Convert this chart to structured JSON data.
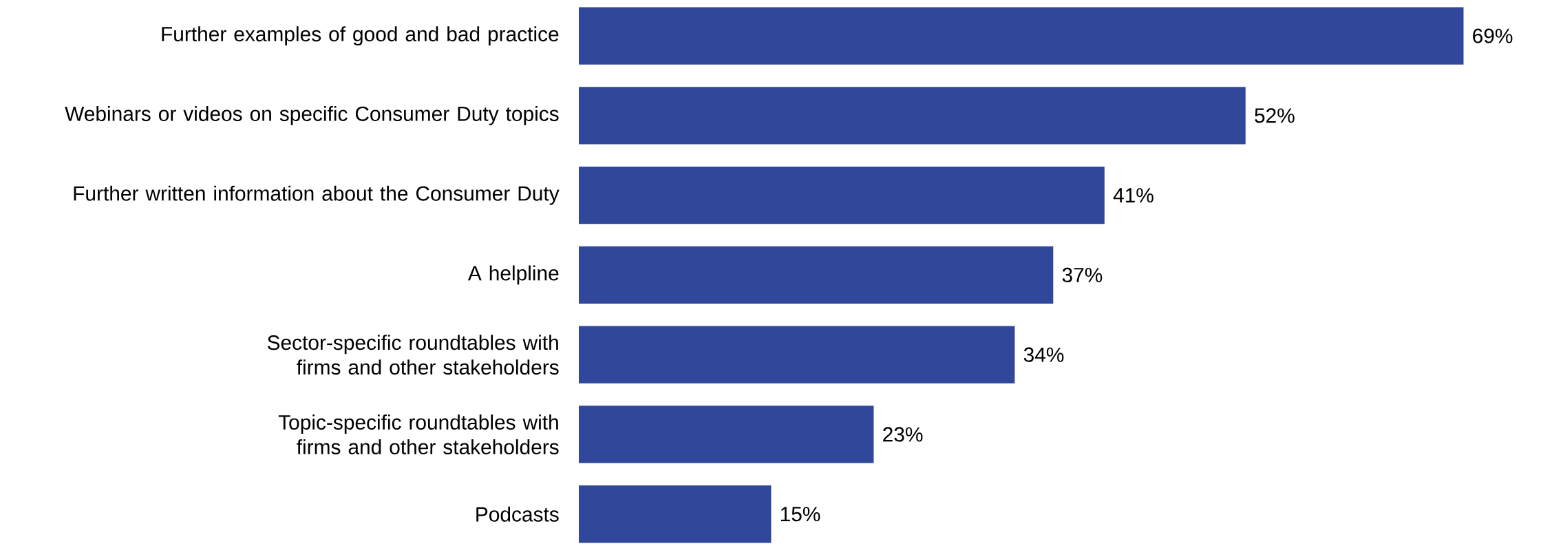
{
  "chart_data": {
    "type": "bar",
    "orientation": "horizontal",
    "categories": [
      "Further examples of good and bad practice",
      "Webinars or videos on specific Consumer Duty topics",
      "Further written information about the Consumer Duty",
      "A helpline",
      "Sector-specific roundtables with firms and other stakeholders",
      "Topic-specific roundtables with firms and other stakeholders",
      "Podcasts"
    ],
    "values": [
      69,
      52,
      41,
      37,
      34,
      23,
      15
    ],
    "value_labels": [
      "69%",
      "52%",
      "41%",
      "37%",
      "34%",
      "23%",
      "15%"
    ],
    "color": "#30479b"
  }
}
